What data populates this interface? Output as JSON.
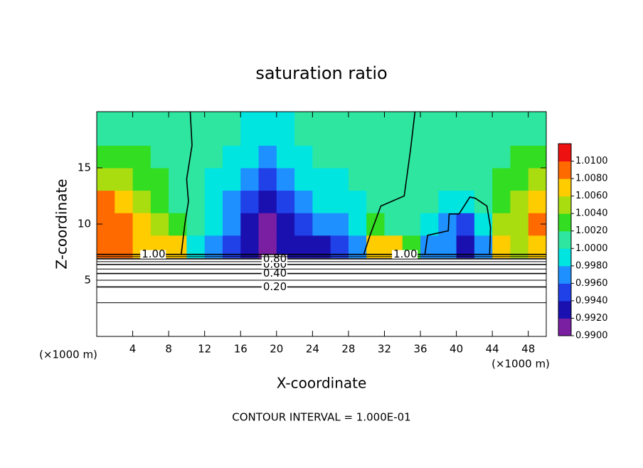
{
  "chart_data": {
    "type": "contourfill",
    "title": "saturation ratio",
    "x_label": "X-coordinate",
    "y_label": "Z-coordinate",
    "x_unit": "(×1000 m)",
    "y_unit": "(×1000 m)",
    "footer": "CONTOUR INTERVAL = 1.000E-01",
    "xlim": [
      0,
      50
    ],
    "ylim": [
      0,
      20
    ],
    "xticks": [
      4,
      8,
      12,
      16,
      20,
      24,
      28,
      32,
      36,
      40,
      44,
      48
    ],
    "yticks": [
      5,
      10,
      15
    ],
    "x_edges": [
      0,
      2,
      4,
      6,
      8,
      10,
      12,
      14,
      16,
      18,
      20,
      22,
      24,
      26,
      28,
      30,
      32,
      34,
      36,
      38,
      40,
      42,
      44,
      46,
      48,
      50
    ],
    "z_edges": [
      7,
      9,
      11,
      13,
      15,
      17,
      20
    ],
    "field": [
      [
        1.008,
        1.008,
        1.006,
        1.007,
        1.006,
        0.999,
        0.997,
        0.995,
        0.993,
        0.991,
        0.993,
        0.993,
        0.993,
        0.994,
        0.997,
        1.006,
        1.007,
        1.003,
        0.997,
        0.996,
        0.993,
        0.997,
        1.007,
        1.004,
        1.007
      ],
      [
        1.009,
        1.008,
        1.006,
        1.004,
        1.002,
        1.0,
        0.998,
        0.996,
        0.993,
        0.991,
        0.993,
        0.995,
        0.996,
        0.997,
        0.998,
        1.002,
        1.001,
        1.0,
        0.999,
        0.996,
        0.994,
        0.998,
        1.004,
        1.004,
        1.008
      ],
      [
        1.008,
        1.006,
        1.004,
        1.003,
        1.001,
        1.0,
        0.999,
        0.997,
        0.994,
        0.993,
        0.994,
        0.996,
        0.998,
        0.998,
        0.999,
        1.0,
        1.0,
        1.0,
        1.0,
        0.999,
        0.998,
        1.0,
        1.003,
        1.004,
        1.007
      ],
      [
        1.005,
        1.004,
        1.003,
        1.002,
        1.001,
        1.0,
        0.999,
        0.998,
        0.996,
        0.995,
        0.996,
        0.998,
        0.999,
        0.999,
        1.0,
        1.0,
        1.0,
        1.0,
        1.0,
        1.0,
        1.0,
        1.0,
        1.002,
        1.003,
        1.004
      ],
      [
        1.002,
        1.002,
        1.002,
        1.001,
        1.0,
        1.0,
        1.0,
        0.999,
        0.998,
        0.997,
        0.998,
        0.999,
        1.0,
        1.0,
        1.0,
        1.0,
        1.0,
        1.0,
        1.001,
        1.0,
        1.0,
        1.001,
        1.001,
        1.002,
        1.002
      ],
      [
        1.001,
        1.001,
        1.001,
        1.0,
        1.0,
        1.0,
        1.0,
        1.0,
        0.999,
        0.999,
        0.999,
        1.0,
        1.0,
        1.0,
        1.0,
        1.0,
        1.0,
        1.0,
        1.0,
        1.0,
        1.0,
        1.0,
        1.0,
        1.001,
        1.001
      ]
    ],
    "colorscale": [
      "#7a1fa2",
      "#1a10b0",
      "#2040e8",
      "#1e90ff",
      "#00e5e0",
      "#2ee6a0",
      "#33dd22",
      "#aadd10",
      "#ffcc00",
      "#ff6a00",
      "#ee1111"
    ],
    "clim": [
      0.99,
      1.012
    ],
    "cticks": [
      {
        "value": 0.99,
        "label": "0.9900"
      },
      {
        "value": 0.992,
        "label": "0.9920"
      },
      {
        "value": 0.994,
        "label": "0.9940"
      },
      {
        "value": 0.996,
        "label": "0.9960"
      },
      {
        "value": 0.998,
        "label": "0.9980"
      },
      {
        "value": 1.0,
        "label": "1.0000"
      },
      {
        "value": 1.002,
        "label": "1.0020"
      },
      {
        "value": 1.004,
        "label": "1.0040"
      },
      {
        "value": 1.006,
        "label": "1.0060"
      },
      {
        "value": 1.008,
        "label": "1.0080"
      },
      {
        "value": 1.01,
        "label": "1.0100"
      }
    ],
    "contours": [
      {
        "level": 0.1,
        "z": 3.0
      },
      {
        "level": {
          "value": 0.2,
          "label": "0.20"
        },
        "z": 4.4
      },
      {
        "level": 0.3,
        "z": 5.0
      },
      {
        "level": {
          "value": 0.4,
          "label": "0.40"
        },
        "z": 5.6
      },
      {
        "level": 0.5,
        "z": 6.0
      },
      {
        "level": {
          "value": 0.6,
          "label": "0.60"
        },
        "z": 6.4
      },
      {
        "level": 0.7,
        "z": 6.65
      },
      {
        "level": {
          "value": 0.8,
          "label": "0.80"
        },
        "z": 6.9
      },
      {
        "level": 0.9,
        "z": 7.1
      },
      {
        "level": {
          "value": 1.0,
          "label": "1.00"
        },
        "z": 7.3
      }
    ],
    "saturation_lines": [
      {
        "x": [
          10.4,
          10.6,
          10.0,
          10.2,
          9.8,
          9.4
        ],
        "z": [
          20,
          17,
          14,
          12,
          10,
          7.3
        ]
      },
      {
        "x": [
          35.4,
          34.9,
          34.2,
          31.6,
          30.4,
          29.7
        ],
        "z": [
          20,
          16.6,
          12.5,
          11.6,
          9,
          7.3
        ]
      },
      {
        "x": [
          36.5,
          36.8,
          39.1,
          39.2,
          40.3,
          41.5,
          42.1,
          43.4,
          43.8,
          43.7
        ],
        "z": [
          7.3,
          9,
          9.4,
          10.9,
          10.9,
          12.4,
          12.3,
          11.6,
          9.7,
          7.3
        ]
      }
    ]
  }
}
